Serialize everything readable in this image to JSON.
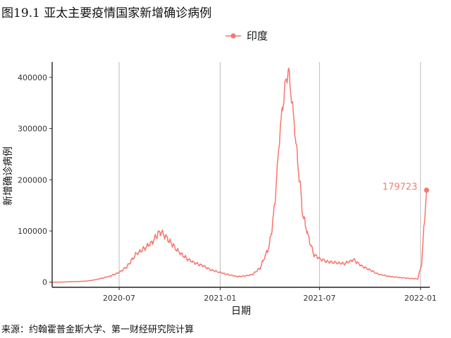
{
  "title": "图19.1 亚太主要疫情国家新增确诊病例",
  "source": "来源：约翰霍普金斯大学、第一财经研究院计算",
  "chart_data": {
    "type": "line",
    "xlabel": "日期",
    "ylabel": "新增确诊病例",
    "x_ticks": [
      "2020-07",
      "2021-01",
      "2021-07",
      "2022-01"
    ],
    "y_ticks": [
      0,
      100000,
      200000,
      300000,
      400000
    ],
    "xlim": [
      "2020-03-01",
      "2022-01-18"
    ],
    "ylim": [
      -10000,
      430000
    ],
    "grid": "vertical-major",
    "legend_position": "top",
    "series": [
      {
        "name": "印度",
        "color": "#F8766D",
        "points": [
          [
            "2020-03-01",
            0
          ],
          [
            "2020-03-20",
            200
          ],
          [
            "2020-04-01",
            1000
          ],
          [
            "2020-04-15",
            1200
          ],
          [
            "2020-05-01",
            2000
          ],
          [
            "2020-05-15",
            4000
          ],
          [
            "2020-06-01",
            8000
          ],
          [
            "2020-06-15",
            12000
          ],
          [
            "2020-07-01",
            19000
          ],
          [
            "2020-07-15",
            30000
          ],
          [
            "2020-08-01",
            55000
          ],
          [
            "2020-08-15",
            65000
          ],
          [
            "2020-09-01",
            80000
          ],
          [
            "2020-09-10",
            96000
          ],
          [
            "2020-09-17",
            97000
          ],
          [
            "2020-10-01",
            80000
          ],
          [
            "2020-10-15",
            62000
          ],
          [
            "2020-11-01",
            46000
          ],
          [
            "2020-11-15",
            38000
          ],
          [
            "2020-12-01",
            32000
          ],
          [
            "2020-12-15",
            24000
          ],
          [
            "2021-01-01",
            19000
          ],
          [
            "2021-01-15",
            15000
          ],
          [
            "2021-02-01",
            11000
          ],
          [
            "2021-02-15",
            12000
          ],
          [
            "2021-03-01",
            15000
          ],
          [
            "2021-03-15",
            28000
          ],
          [
            "2021-04-01",
            72000
          ],
          [
            "2021-04-10",
            145000
          ],
          [
            "2021-04-20",
            295000
          ],
          [
            "2021-04-30",
            390000
          ],
          [
            "2021-05-06",
            412000
          ],
          [
            "2021-05-10",
            370000
          ],
          [
            "2021-05-15",
            320000
          ],
          [
            "2021-05-25",
            205000
          ],
          [
            "2021-06-01",
            130000
          ],
          [
            "2021-06-10",
            92000
          ],
          [
            "2021-06-20",
            55000
          ],
          [
            "2021-07-01",
            46000
          ],
          [
            "2021-07-15",
            40000
          ],
          [
            "2021-08-01",
            38000
          ],
          [
            "2021-08-15",
            36000
          ],
          [
            "2021-09-01",
            44000
          ],
          [
            "2021-09-15",
            32000
          ],
          [
            "2021-10-01",
            24000
          ],
          [
            "2021-10-15",
            16000
          ],
          [
            "2021-11-01",
            12000
          ],
          [
            "2021-11-15",
            10000
          ],
          [
            "2021-12-01",
            8500
          ],
          [
            "2021-12-15",
            7000
          ],
          [
            "2021-12-27",
            6500
          ],
          [
            "2022-01-03",
            35000
          ],
          [
            "2022-01-08",
            120000
          ],
          [
            "2022-01-12",
            179723
          ]
        ]
      }
    ],
    "annotations": [
      {
        "label": "179723",
        "x": "2022-01-12",
        "y": 179723
      }
    ]
  }
}
